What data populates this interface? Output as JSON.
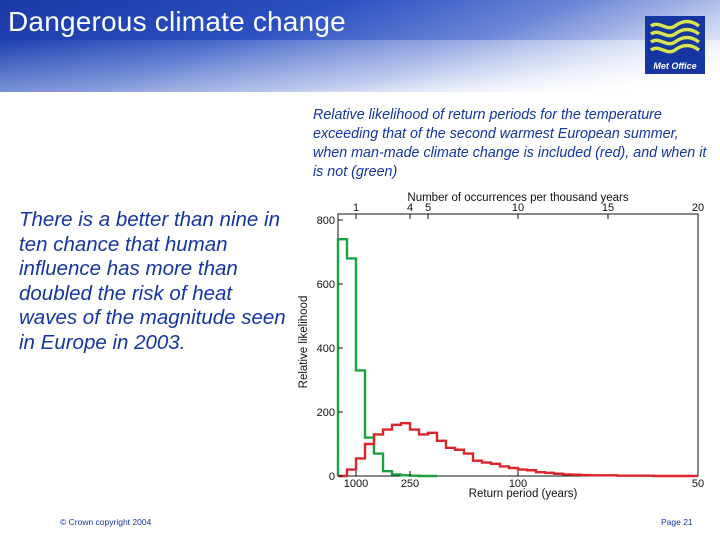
{
  "header": {
    "title": "Dangerous climate change",
    "logo_text": "Met Office"
  },
  "caption": "Relative likelihood of return periods for the temperature exceeding that of the second warmest European summer, when man-made climate change is included (red), and when it is not (green)",
  "body_text": "There is a better than nine in ten chance that human influence has more than doubled the risk of heat waves of the magnitude seen in Europe in 2003.",
  "footer": {
    "copyright": "© Crown copyright 2004",
    "page": "Page 21"
  },
  "colors": {
    "brand_blue": "#1535a0",
    "red_series": "#d8262c",
    "green_series": "#1ba33e"
  },
  "chart_data": {
    "type": "histogram",
    "top_axis": {
      "label": "Number of occurrences per thousand years",
      "ticks": [
        1,
        4,
        5,
        10,
        15,
        20
      ],
      "tick_labels": [
        "1",
        "4",
        "5",
        "10",
        "15",
        "20"
      ]
    },
    "bottom_axis": {
      "label": "Return period (years)",
      "ticks": [
        1000,
        250,
        100,
        50
      ],
      "tick_labels": [
        "1000",
        "250",
        "100",
        "50"
      ]
    },
    "ylabel": "Relative likelihood",
    "ylim": [
      0,
      800
    ],
    "yticks": [
      0,
      200,
      400,
      600,
      800
    ],
    "ytick_labels": [
      "0",
      "200",
      "400",
      "600",
      "800"
    ],
    "bin_width": 0.5,
    "series": [
      {
        "name": "with man-made climate change (red)",
        "color": "#d8262c",
        "bin_starts": [
          0.0,
          0.5,
          1.0,
          1.5,
          2.0,
          2.5,
          3.0,
          3.5,
          4.0,
          4.5,
          5.0,
          5.5,
          6.0,
          6.5,
          7.0,
          7.5,
          8.0,
          8.5,
          9.0,
          9.5,
          10.0,
          10.5,
          11.0,
          11.5,
          12.0,
          12.5,
          13.0,
          13.5,
          14.0,
          14.5,
          15.0,
          15.5,
          16.0,
          16.5,
          17.0,
          17.5,
          18.0,
          18.5,
          19.0,
          19.5
        ],
        "values": [
          0,
          20,
          55,
          100,
          130,
          145,
          160,
          165,
          145,
          130,
          135,
          110,
          88,
          82,
          70,
          48,
          42,
          38,
          30,
          25,
          20,
          18,
          12,
          10,
          7,
          5,
          4,
          3,
          2,
          2,
          2,
          1,
          1,
          1,
          1,
          0,
          0,
          0,
          0,
          0
        ]
      },
      {
        "name": "without man-made climate change (green)",
        "color": "#1ba33e",
        "bin_starts": [
          0.0,
          0.5,
          1.0,
          1.5,
          2.0,
          2.5,
          3.0,
          3.5,
          4.0,
          4.5,
          5.0
        ],
        "values": [
          740,
          680,
          330,
          120,
          70,
          15,
          5,
          2,
          1,
          0,
          0
        ]
      }
    ]
  }
}
